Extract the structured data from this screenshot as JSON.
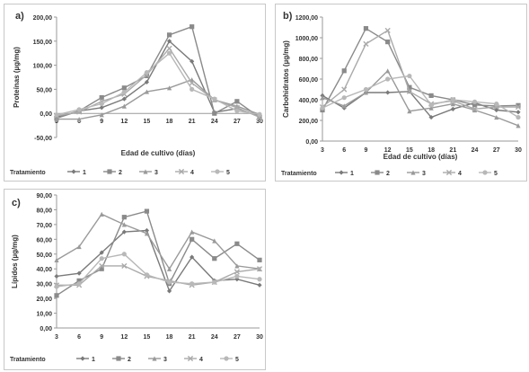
{
  "legend_title": "Tratamiento",
  "chart_data": [
    {
      "id": "a",
      "type": "line",
      "panel_label": "a)",
      "xlabel": "Edad de cultivo (días)",
      "ylabel": "Proteínas (µg/mg)",
      "ylim": [
        -50,
        200
      ],
      "y_ticks": [
        "-50,00",
        "0,00",
        "50,00",
        "100,00",
        "150,00",
        "200,00"
      ],
      "x": [
        3,
        6,
        9,
        12,
        15,
        18,
        21,
        24,
        27,
        30
      ],
      "x_labels": [
        "3",
        "6",
        "9",
        "12",
        "15",
        "18",
        "21",
        "24",
        "27",
        "30"
      ],
      "legend_position": "bottom",
      "series": [
        {
          "name": "1",
          "color": "#7a7a7a",
          "marker": "diamond",
          "values": [
            -8,
            5,
            12,
            30,
            65,
            150,
            108,
            2,
            10,
            -5
          ]
        },
        {
          "name": "2",
          "color": "#8a8a8a",
          "marker": "square",
          "values": [
            -10,
            5,
            33,
            53,
            78,
            163,
            180,
            0,
            25,
            -8
          ]
        },
        {
          "name": "3",
          "color": "#9a9a9a",
          "marker": "triangle",
          "values": [
            -12,
            -12,
            -3,
            15,
            45,
            53,
            70,
            28,
            15,
            -2
          ]
        },
        {
          "name": "4",
          "color": "#aaaaaa",
          "marker": "x",
          "values": [
            -5,
            3,
            25,
            40,
            80,
            135,
            63,
            28,
            12,
            -8
          ]
        },
        {
          "name": "5",
          "color": "#b8b8b8",
          "marker": "circle",
          "values": [
            -3,
            8,
            20,
            44,
            85,
            125,
            50,
            30,
            5,
            -2
          ]
        }
      ]
    },
    {
      "id": "b",
      "type": "line",
      "panel_label": "b)",
      "xlabel": "Edad de cultivo (días)",
      "ylabel": "Carbohidratos (µg/mg)",
      "ylim": [
        0,
        1200
      ],
      "y_ticks": [
        "0,00",
        "200,00",
        "400,00",
        "600,00",
        "800,00",
        "1000,00",
        "1200,00"
      ],
      "x": [
        3,
        6,
        9,
        12,
        15,
        18,
        21,
        24,
        27,
        30
      ],
      "x_labels": [
        "3",
        "6",
        "9",
        "12",
        "15",
        "18",
        "21",
        "24",
        "27",
        "30"
      ],
      "legend_position": "bottom",
      "series": [
        {
          "name": "1",
          "color": "#7a7a7a",
          "marker": "diamond",
          "values": [
            440,
            320,
            470,
            470,
            480,
            230,
            310,
            370,
            300,
            280
          ]
        },
        {
          "name": "2",
          "color": "#8a8a8a",
          "marker": "square",
          "values": [
            300,
            680,
            1090,
            960,
            520,
            440,
            400,
            350,
            340,
            345
          ]
        },
        {
          "name": "3",
          "color": "#9a9a9a",
          "marker": "triangle",
          "values": [
            420,
            340,
            470,
            680,
            290,
            320,
            360,
            300,
            230,
            150
          ]
        },
        {
          "name": "4",
          "color": "#aaaaaa",
          "marker": "x",
          "values": [
            330,
            500,
            940,
            1070,
            480,
            360,
            390,
            310,
            330,
            330
          ]
        },
        {
          "name": "5",
          "color": "#b8b8b8",
          "marker": "circle",
          "values": [
            320,
            420,
            500,
            600,
            630,
            350,
            400,
            380,
            360,
            230
          ]
        }
      ]
    },
    {
      "id": "c",
      "type": "line",
      "panel_label": "c)",
      "xlabel": "",
      "ylabel": "Lípidos (µg/mg)",
      "ylim": [
        0,
        90
      ],
      "y_ticks": [
        "0,00",
        "10,00",
        "20,00",
        "30,00",
        "40,00",
        "50,00",
        "60,00",
        "70,00",
        "80,00",
        "90,00"
      ],
      "x": [
        3,
        6,
        9,
        12,
        15,
        18,
        21,
        24,
        27,
        30
      ],
      "x_labels": [
        "3",
        "6",
        "9",
        "12",
        "15",
        "18",
        "21",
        "24",
        "27",
        "30"
      ],
      "legend_position": "bottom",
      "series": [
        {
          "name": "1",
          "color": "#7a7a7a",
          "marker": "diamond",
          "values": [
            35,
            37,
            51,
            65,
            66,
            25,
            48,
            32,
            33,
            29
          ]
        },
        {
          "name": "2",
          "color": "#8a8a8a",
          "marker": "square",
          "values": [
            22,
            32,
            40,
            75,
            79,
            30,
            60,
            47,
            57,
            46
          ]
        },
        {
          "name": "3",
          "color": "#9a9a9a",
          "marker": "triangle",
          "values": [
            46,
            55,
            77,
            70,
            64,
            40,
            65,
            59,
            42,
            40
          ]
        },
        {
          "name": "4",
          "color": "#aaaaaa",
          "marker": "x",
          "values": [
            29,
            29,
            42,
            42,
            35,
            32,
            29,
            31,
            38,
            40
          ]
        },
        {
          "name": "5",
          "color": "#b8b8b8",
          "marker": "circle",
          "values": [
            28,
            30,
            47,
            50,
            36,
            31,
            30,
            31,
            35,
            33
          ]
        }
      ]
    }
  ]
}
